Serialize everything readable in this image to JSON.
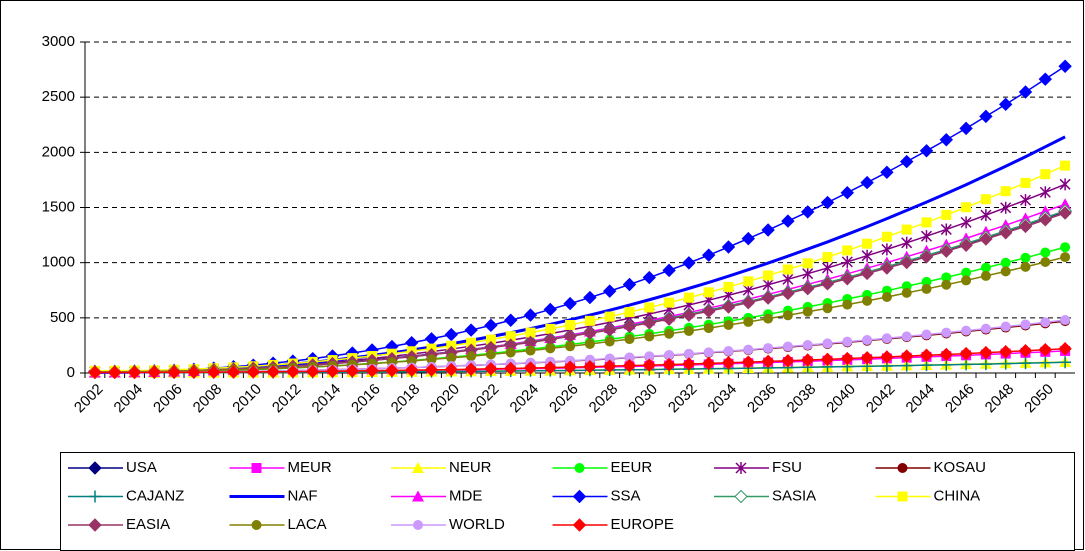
{
  "chart_data": {
    "type": "line",
    "categories": [
      "2002",
      null,
      "2004",
      null,
      "2006",
      null,
      "2008",
      null,
      "2010",
      null,
      "2012",
      null,
      "2014",
      null,
      "2016",
      null,
      "2018",
      null,
      "2020",
      null,
      "2022",
      null,
      "2024",
      null,
      "2026",
      null,
      "2028",
      null,
      "2030",
      null,
      "2032",
      null,
      "2034",
      null,
      "2036",
      null,
      "2038",
      null,
      "2040",
      null,
      "2042",
      null,
      "2044",
      null,
      "2046",
      null,
      "2048",
      null,
      "2050",
      null
    ],
    "ylim": [
      0,
      3000
    ],
    "yticks": [
      0,
      500,
      1000,
      1500,
      2000,
      2500,
      3000
    ],
    "grid": true,
    "series": [
      {
        "name": "USA",
        "color": "#000080",
        "marker": "diamond",
        "values": [
          15,
          15,
          17,
          19,
          23,
          27,
          33,
          39,
          47,
          56,
          67,
          78,
          91,
          105,
          119,
          136,
          153,
          172,
          192,
          213,
          236,
          260,
          285,
          311,
          339,
          368,
          398,
          430,
          462,
          497,
          532,
          569,
          608,
          647,
          688,
          731,
          774,
          819,
          865,
          913,
          962,
          1013,
          1064,
          1116,
          1171,
          1227,
          1285,
          1343,
          1404,
          1465
        ]
      },
      {
        "name": "MEUR",
        "color": "#ff00ff",
        "marker": "square",
        "values": [
          3,
          3,
          3,
          4,
          4,
          5,
          5,
          6,
          7,
          9,
          10,
          12,
          13,
          15,
          17,
          19,
          22,
          24,
          27,
          30,
          33,
          36,
          40,
          43,
          47,
          51,
          55,
          59,
          64,
          68,
          73,
          78,
          84,
          89,
          95,
          100,
          106,
          112,
          119,
          125,
          132,
          139,
          146,
          153,
          160,
          168,
          176,
          183,
          192,
          200
        ]
      },
      {
        "name": "NEUR",
        "color": "#ffff00",
        "marker": "triangle",
        "values": [
          2,
          2,
          2,
          2,
          3,
          3,
          3,
          4,
          4,
          5,
          6,
          6,
          7,
          8,
          9,
          10,
          11,
          13,
          14,
          15,
          17,
          19,
          20,
          22,
          24,
          26,
          28,
          30,
          32,
          35,
          37,
          39,
          42,
          45,
          48,
          50,
          53,
          56,
          60,
          63,
          66,
          69,
          73,
          76,
          80,
          84,
          88,
          92,
          96,
          100
        ]
      },
      {
        "name": "EEUR",
        "color": "#00ff00",
        "marker": "circle",
        "values": [
          5,
          5,
          6,
          8,
          11,
          14,
          19,
          24,
          30,
          37,
          45,
          54,
          64,
          75,
          87,
          99,
          113,
          128,
          144,
          160,
          178,
          197,
          216,
          237,
          258,
          281,
          305,
          330,
          355,
          382,
          410,
          439,
          469,
          500,
          532,
          565,
          599,
          634,
          671,
          708,
          746,
          786,
          826,
          867,
          910,
          954,
          999,
          1044,
          1092,
          1140
        ]
      },
      {
        "name": "FSU",
        "color": "#800080",
        "marker": "star",
        "values": [
          10,
          11,
          12,
          15,
          19,
          24,
          31,
          39,
          48,
          59,
          70,
          84,
          99,
          115,
          132,
          151,
          172,
          194,
          217,
          243,
          269,
          297,
          326,
          357,
          390,
          424,
          459,
          496,
          535,
          575,
          616,
          660,
          705,
          751,
          800,
          849,
          900,
          952,
          1007,
          1063,
          1120,
          1180,
          1240,
          1301,
          1365,
          1431,
          1498,
          1567,
          1638,
          1710
        ]
      },
      {
        "name": "KOSAU",
        "color": "#800000",
        "marker": "circle",
        "values": [
          5,
          5,
          6,
          6,
          7,
          9,
          11,
          13,
          15,
          18,
          22,
          25,
          29,
          34,
          39,
          44,
          49,
          55,
          62,
          69,
          76,
          84,
          92,
          100,
          109,
          118,
          128,
          138,
          149,
          160,
          171,
          183,
          195,
          208,
          221,
          235,
          249,
          263,
          278,
          293,
          309,
          325,
          341,
          358,
          376,
          394,
          412,
          431,
          450,
          470
        ]
      },
      {
        "name": "CAJANZ",
        "color": "#008080",
        "marker": "plus",
        "values": [
          2,
          2,
          2,
          2,
          2,
          3,
          3,
          4,
          4,
          5,
          5,
          6,
          7,
          8,
          9,
          10,
          11,
          12,
          14,
          15,
          16,
          18,
          20,
          21,
          23,
          25,
          27,
          29,
          31,
          34,
          36,
          38,
          41,
          43,
          46,
          49,
          52,
          55,
          58,
          61,
          64,
          67,
          71,
          74,
          78,
          81,
          85,
          89,
          93,
          97
        ]
      },
      {
        "name": "NAF",
        "color": "#0000ff",
        "marker": "none",
        "values": [
          5,
          6,
          8,
          11,
          16,
          23,
          31,
          41,
          52,
          66,
          81,
          98,
          116,
          137,
          159,
          183,
          209,
          236,
          265,
          297,
          330,
          365,
          402,
          441,
          482,
          525,
          569,
          616,
          664,
          714,
          767,
          821,
          877,
          936,
          996,
          1059,
          1123,
          1188,
          1257,
          1327,
          1399,
          1474,
          1549,
          1627,
          1706,
          1790,
          1874,
          1960,
          2050,
          2140
        ]
      },
      {
        "name": "MDE",
        "color": "#ff00ff",
        "marker": "triangle",
        "values": [
          5,
          6,
          7,
          9,
          13,
          18,
          24,
          31,
          39,
          49,
          59,
          71,
          85,
          99,
          115,
          132,
          151,
          170,
          191,
          214,
          237,
          262,
          289,
          317,
          346,
          376,
          408,
          441,
          476,
          512,
          549,
          588,
          628,
          670,
          713,
          758,
          804,
          850,
          899,
          950,
          1001,
          1054,
          1108,
          1163,
          1220,
          1280,
          1340,
          1402,
          1466,
          1530
        ]
      },
      {
        "name": "SSA",
        "color": "#0000ff",
        "marker": "diamond",
        "values": [
          10,
          11,
          13,
          18,
          24,
          33,
          44,
          57,
          71,
          89,
          108,
          130,
          154,
          181,
          209,
          240,
          274,
          310,
          348,
          389,
          432,
          478,
          525,
          576,
          629,
          684,
          742,
          802,
          865,
          930,
          998,
          1068,
          1142,
          1218,
          1296,
          1377,
          1460,
          1545,
          1634,
          1726,
          1819,
          1916,
          2014,
          2114,
          2217,
          2326,
          2435,
          2547,
          2663,
          2780
        ]
      },
      {
        "name": "SASIA",
        "color": "#339966",
        "marker": "hollow-diamond",
        "values": [
          10,
          10,
          12,
          14,
          18,
          22,
          28,
          35,
          42,
          52,
          62,
          73,
          86,
          100,
          115,
          132,
          149,
          168,
          188,
          210,
          233,
          256,
          282,
          308,
          336,
          365,
          396,
          428,
          460,
          495,
          531,
          568,
          607,
          647,
          688,
          731,
          775,
          819,
          866,
          914,
          964,
          1015,
          1066,
          1119,
          1174,
          1231,
          1288,
          1347,
          1409,
          1470
        ]
      },
      {
        "name": "CHINA",
        "color": "#ffff00",
        "marker": "square",
        "values": [
          20,
          21,
          22,
          25,
          30,
          35,
          43,
          51,
          61,
          73,
          86,
          101,
          117,
          135,
          154,
          175,
          197,
          221,
          247,
          274,
          303,
          334,
          366,
          400,
          435,
          473,
          511,
          552,
          594,
          638,
          683,
          731,
          780,
          831,
          884,
          938,
          994,
          1051,
          1111,
          1172,
          1235,
          1300,
          1365,
          1433,
          1502,
          1575,
          1648,
          1723,
          1802,
          1880
        ]
      },
      {
        "name": "EASIA",
        "color": "#993366",
        "marker": "diamond",
        "values": [
          10,
          10,
          12,
          14,
          18,
          22,
          28,
          34,
          42,
          51,
          61,
          73,
          85,
          99,
          114,
          130,
          147,
          166,
          186,
          207,
          230,
          253,
          278,
          304,
          332,
          361,
          390,
          422,
          454,
          488,
          524,
          560,
          598,
          638,
          679,
          721,
          764,
          808,
          854,
          902,
          951,
          1001,
          1052,
          1104,
          1158,
          1214,
          1271,
          1329,
          1389,
          1450
        ]
      },
      {
        "name": "LACA",
        "color": "#808000",
        "marker": "circle",
        "values": [
          10,
          10,
          11,
          13,
          15,
          19,
          23,
          28,
          33,
          40,
          47,
          55,
          64,
          74,
          85,
          97,
          109,
          123,
          137,
          152,
          169,
          186,
          203,
          223,
          242,
          263,
          285,
          307,
          331,
          356,
          381,
          407,
          435,
          463,
          493,
          523,
          555,
          587,
          620,
          654,
          689,
          726,
          762,
          800,
          839,
          880,
          921,
          962,
          1006,
          1050
        ]
      },
      {
        "name": "WORLD",
        "color": "#cc99ff",
        "marker": "circle",
        "values": [
          5,
          5,
          6,
          6,
          7,
          9,
          11,
          13,
          16,
          19,
          22,
          26,
          30,
          34,
          39,
          45,
          50,
          56,
          63,
          70,
          77,
          85,
          93,
          102,
          111,
          121,
          131,
          141,
          152,
          163,
          174,
          187,
          199,
          212,
          226,
          240,
          254,
          268,
          284,
          299,
          315,
          332,
          349,
          366,
          384,
          402,
          421,
          440,
          460,
          480
        ]
      },
      {
        "name": "EUROPE",
        "color": "#ff0000",
        "marker": "diamond",
        "values": [
          5,
          5,
          5,
          6,
          6,
          7,
          8,
          9,
          10,
          11,
          13,
          14,
          16,
          18,
          21,
          23,
          26,
          28,
          31,
          34,
          38,
          41,
          45,
          49,
          53,
          57,
          62,
          67,
          71,
          76,
          82,
          87,
          93,
          99,
          105,
          111,
          118,
          124,
          131,
          138,
          145,
          153,
          161,
          168,
          176,
          185,
          193,
          202,
          211,
          220
        ]
      }
    ]
  }
}
